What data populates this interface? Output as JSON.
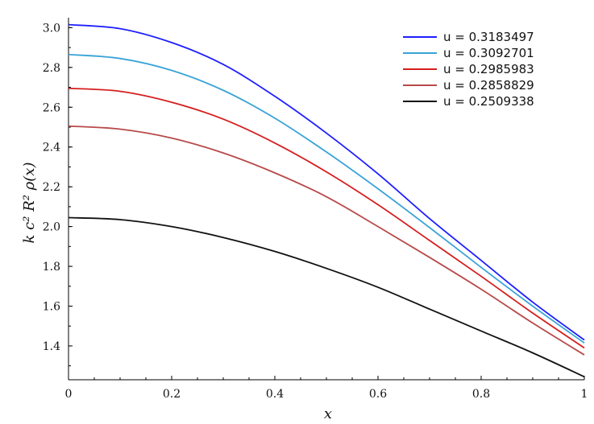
{
  "chart_data": {
    "type": "line",
    "title": "",
    "xlabel": "x",
    "ylabel": "k c² R² ρ(x)",
    "xlim": [
      0,
      1
    ],
    "ylim": [
      1.23,
      3.05
    ],
    "x_ticks": [
      {
        "value": 0,
        "label": "0"
      },
      {
        "value": 0.2,
        "label": "0.2"
      },
      {
        "value": 0.4,
        "label": "0.4"
      },
      {
        "value": 0.6,
        "label": "0.6"
      },
      {
        "value": 0.8,
        "label": "0.8"
      },
      {
        "value": 1,
        "label": "1"
      }
    ],
    "y_ticks": [
      {
        "value": 1.4,
        "label": "1.4"
      },
      {
        "value": 1.6,
        "label": "1.6"
      },
      {
        "value": 1.8,
        "label": "1.8"
      },
      {
        "value": 2.0,
        "label": "2.0"
      },
      {
        "value": 2.2,
        "label": "2.2"
      },
      {
        "value": 2.4,
        "label": "2.4"
      },
      {
        "value": 2.6,
        "label": "2.6"
      },
      {
        "value": 2.8,
        "label": "2.8"
      },
      {
        "value": 3.0,
        "label": "3.0"
      }
    ],
    "grid": false,
    "legend_position": "top-right",
    "x": [
      0,
      0.1,
      0.2,
      0.3,
      0.4,
      0.5,
      0.6,
      0.7,
      0.8,
      0.9,
      1.0
    ],
    "series": [
      {
        "name": "u = 0.3183497",
        "color": "#1f1fff",
        "values": [
          3.015,
          2.995,
          2.925,
          2.815,
          2.655,
          2.47,
          2.265,
          2.04,
          1.83,
          1.62,
          1.43
        ]
      },
      {
        "name": "u = 0.3092701",
        "color": "#3aa3d8",
        "values": [
          2.865,
          2.845,
          2.785,
          2.685,
          2.545,
          2.375,
          2.19,
          1.995,
          1.795,
          1.6,
          1.415
        ]
      },
      {
        "name": "u = 0.2985983",
        "color": "#d61e1e",
        "values": [
          2.695,
          2.68,
          2.625,
          2.54,
          2.42,
          2.275,
          2.11,
          1.93,
          1.75,
          1.565,
          1.39
        ]
      },
      {
        "name": "u = 0.2858829",
        "color": "#b84a4a",
        "values": [
          2.505,
          2.49,
          2.445,
          2.37,
          2.27,
          2.15,
          2.0,
          1.845,
          1.685,
          1.515,
          1.355
        ]
      },
      {
        "name": "u = 0.2509338",
        "color": "#111111",
        "values": [
          2.045,
          2.035,
          2.0,
          1.945,
          1.875,
          1.79,
          1.695,
          1.585,
          1.475,
          1.365,
          1.245
        ]
      }
    ]
  }
}
